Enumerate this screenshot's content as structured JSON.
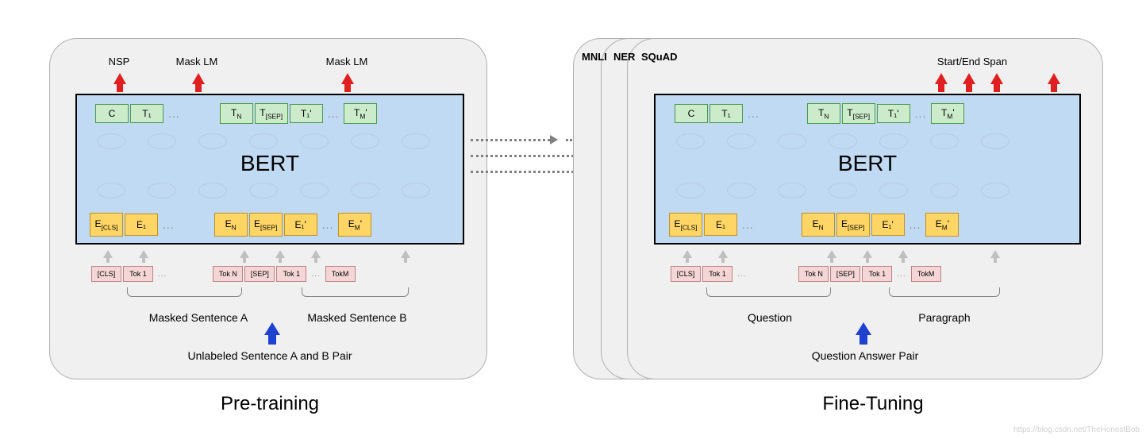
{
  "colors": {
    "panel_bg": "#f0f0f0",
    "panel_border": "#b0b0b0",
    "bert_bg": "#bfdaf2",
    "bert_border": "#000000",
    "token_bg": "#ccebcb",
    "token_border": "#4a9a4a",
    "emb_bg": "#ffd666",
    "emb_border": "#c09020",
    "tok_bg": "#f5d6d6",
    "tok_border": "#c08080",
    "red_arrow": "#e02020",
    "blue_arrow": "#2040d0",
    "gray_arrow": "#c0c0c0",
    "dotted": "#808080",
    "hidden_circle": "#b8c8e0"
  },
  "left": {
    "top_labels": [
      "NSP",
      "Mask LM",
      "Mask LM"
    ],
    "bert_label": "BERT",
    "outputs": [
      "C",
      "T₁",
      "T<sub>N</sub>",
      "T<sub>[SEP]</sub>",
      "T₁'",
      "T<sub>M</sub>'"
    ],
    "embeddings": [
      "E<sub>[CLS]</sub>",
      "E₁",
      "E<sub>N</sub>",
      "E<sub>[SEP]</sub>",
      "E₁'",
      "E<sub>M</sub>'"
    ],
    "tokens": [
      "[CLS]",
      "Tok 1",
      "Tok N",
      "[SEP]",
      "Tok 1",
      "TokM"
    ],
    "sentence_a": "Masked Sentence A",
    "sentence_b": "Masked Sentence B",
    "bottom_label": "Unlabeled Sentence A and B Pair",
    "title": "Pre-training"
  },
  "right": {
    "stack_labels": [
      "MNLI",
      "NER",
      "SQuAD"
    ],
    "top_label": "Start/End Span",
    "bert_label": "BERT",
    "outputs": [
      "C",
      "T₁",
      "T<sub>N</sub>",
      "T<sub>[SEP]</sub>",
      "T₁'",
      "T<sub>M</sub>'"
    ],
    "embeddings": [
      "E<sub>[CLS]</sub>",
      "E₁",
      "E<sub>N</sub>",
      "E<sub>[SEP]</sub>",
      "E₁'",
      "E<sub>M</sub>'"
    ],
    "tokens": [
      "[CLS]",
      "Tok 1",
      "Tok N",
      "[SEP]",
      "Tok 1",
      "TokM"
    ],
    "sentence_a": "Question",
    "sentence_b": "Paragraph",
    "bottom_label": "Question Answer Pair",
    "title": "Fine-Tuning"
  },
  "watermark": "https://blog.csdn.net/TheHonestBob"
}
